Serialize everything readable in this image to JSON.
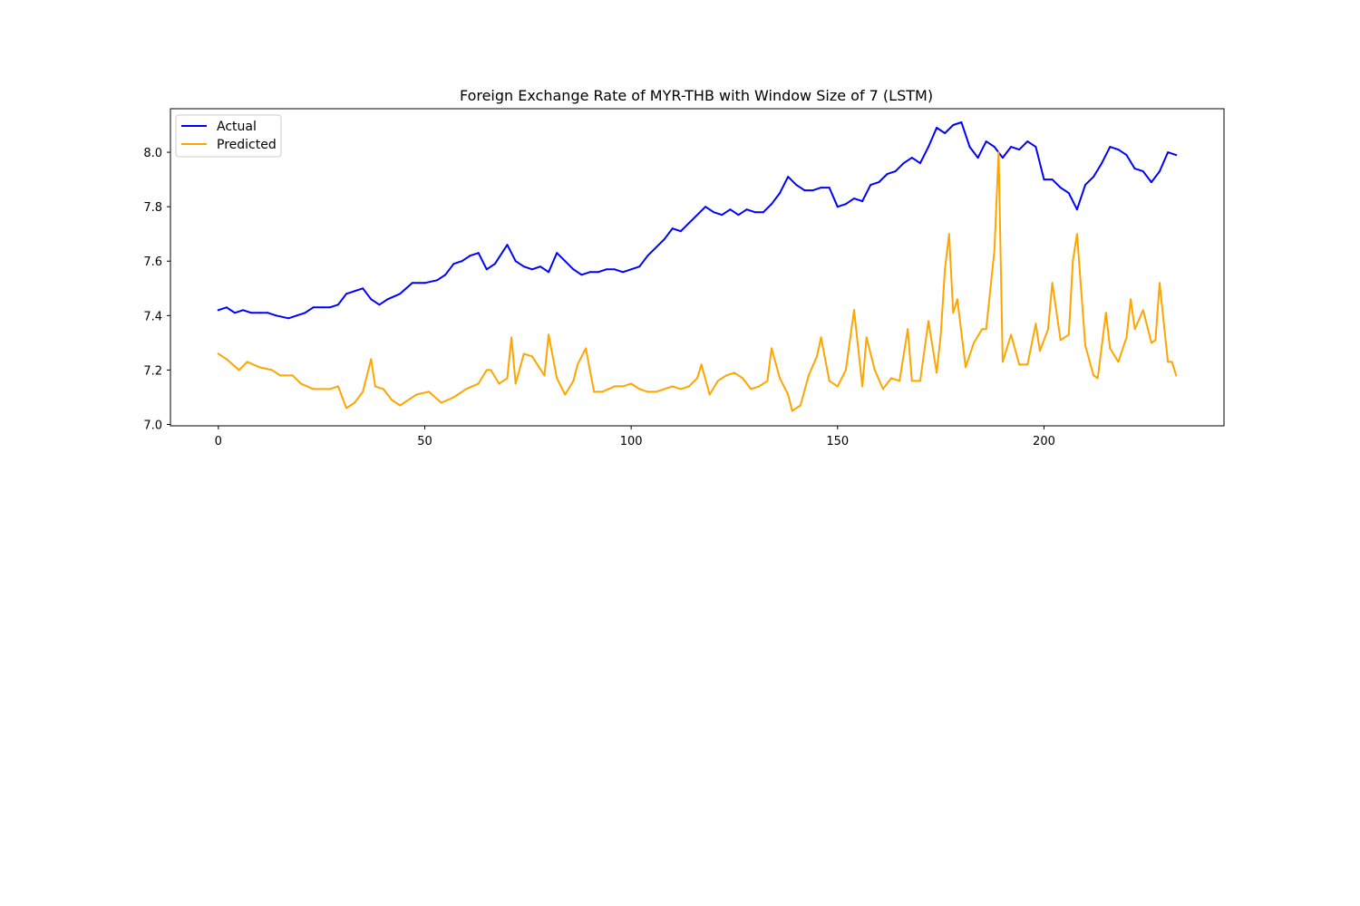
{
  "chart_data": {
    "type": "line",
    "title": "Foreign Exchange Rate of MYR-THB with Window Size of 7 (LSTM)",
    "xlabel": "",
    "ylabel": "",
    "xlim": [
      -11.6,
      243.6
    ],
    "ylim": [
      6.995,
      8.16
    ],
    "x_ticks": [
      0,
      50,
      100,
      150,
      200
    ],
    "y_ticks": [
      7.0,
      7.2,
      7.4,
      7.6,
      7.8,
      8.0
    ],
    "x_tick_labels": [
      "0",
      "50",
      "100",
      "150",
      "200"
    ],
    "y_tick_labels": [
      "7.0",
      "7.2",
      "7.4",
      "7.6",
      "7.8",
      "8.0"
    ],
    "grid": false,
    "legend_position": "upper-left",
    "series": [
      {
        "name": "Actual",
        "color": "#0000ff",
        "x": [
          0,
          2,
          4,
          6,
          8,
          10,
          12,
          14,
          17,
          19,
          21,
          23,
          25,
          27,
          29,
          31,
          33,
          35,
          37,
          39,
          41,
          44,
          47,
          50,
          53,
          55,
          57,
          59,
          61,
          63,
          65,
          67,
          70,
          72,
          74,
          76,
          78,
          80,
          82,
          84,
          86,
          88,
          90,
          92,
          94,
          96,
          98,
          100,
          102,
          104,
          106,
          108,
          110,
          112,
          114,
          116,
          118,
          120,
          122,
          124,
          126,
          128,
          130,
          132,
          134,
          136,
          138,
          140,
          142,
          144,
          146,
          148,
          150,
          152,
          154,
          156,
          158,
          160,
          162,
          164,
          166,
          168,
          170,
          172,
          174,
          176,
          178,
          180,
          182,
          184,
          186,
          188,
          190,
          192,
          194,
          196,
          198,
          200,
          202,
          204,
          206,
          208,
          210,
          212,
          214,
          216,
          218,
          220,
          222,
          224,
          226,
          228,
          230,
          232
        ],
        "values": [
          7.42,
          7.43,
          7.41,
          7.42,
          7.41,
          7.41,
          7.41,
          7.4,
          7.39,
          7.4,
          7.41,
          7.43,
          7.43,
          7.43,
          7.44,
          7.48,
          7.49,
          7.5,
          7.46,
          7.44,
          7.46,
          7.48,
          7.52,
          7.52,
          7.53,
          7.55,
          7.59,
          7.6,
          7.62,
          7.63,
          7.57,
          7.59,
          7.66,
          7.6,
          7.58,
          7.57,
          7.58,
          7.56,
          7.63,
          7.6,
          7.57,
          7.55,
          7.56,
          7.56,
          7.57,
          7.57,
          7.56,
          7.57,
          7.58,
          7.62,
          7.65,
          7.68,
          7.72,
          7.71,
          7.74,
          7.77,
          7.8,
          7.78,
          7.77,
          7.79,
          7.77,
          7.79,
          7.78,
          7.78,
          7.81,
          7.85,
          7.91,
          7.88,
          7.86,
          7.86,
          7.87,
          7.87,
          7.8,
          7.81,
          7.83,
          7.82,
          7.88,
          7.89,
          7.92,
          7.93,
          7.96,
          7.98,
          7.96,
          8.02,
          8.09,
          8.07,
          8.1,
          8.11,
          8.02,
          7.98,
          8.04,
          8.02,
          7.98,
          8.02,
          8.01,
          8.04,
          8.02,
          7.9,
          7.9,
          7.87,
          7.85,
          7.79,
          7.88,
          7.91,
          7.96,
          8.02,
          8.01,
          7.99,
          7.94,
          7.93,
          7.89,
          7.93,
          8.0,
          7.99
        ]
      },
      {
        "name": "Predicted",
        "color": "#ffa500",
        "x": [
          0,
          2,
          5,
          7,
          10,
          13,
          15,
          18,
          20,
          23,
          25,
          27,
          29,
          31,
          33,
          35,
          37,
          38,
          40,
          42,
          44,
          46,
          48,
          51,
          54,
          57,
          60,
          63,
          65,
          66,
          68,
          70,
          71,
          72,
          74,
          76,
          79,
          80,
          82,
          84,
          86,
          87,
          89,
          91,
          93,
          96,
          98,
          100,
          102,
          104,
          106,
          108,
          110,
          112,
          114,
          116,
          117,
          119,
          121,
          123,
          125,
          127,
          129,
          131,
          133,
          134,
          136,
          138,
          139,
          141,
          143,
          145,
          146,
          148,
          150,
          152,
          154,
          156,
          157,
          159,
          161,
          163,
          165,
          167,
          168,
          170,
          172,
          174,
          175,
          176,
          177,
          178,
          179,
          181,
          183,
          185,
          186,
          188,
          189,
          190,
          192,
          194,
          196,
          198,
          199,
          201,
          202,
          204,
          206,
          207,
          208,
          210,
          212,
          213,
          215,
          216,
          218,
          220,
          221,
          222,
          224,
          226,
          227,
          228,
          230,
          231,
          232
        ],
        "values": [
          7.26,
          7.24,
          7.2,
          7.23,
          7.21,
          7.2,
          7.18,
          7.18,
          7.15,
          7.13,
          7.13,
          7.13,
          7.14,
          7.06,
          7.08,
          7.12,
          7.24,
          7.14,
          7.13,
          7.09,
          7.07,
          7.09,
          7.11,
          7.12,
          7.08,
          7.1,
          7.13,
          7.15,
          7.2,
          7.2,
          7.15,
          7.17,
          7.32,
          7.15,
          7.26,
          7.25,
          7.18,
          7.33,
          7.17,
          7.11,
          7.16,
          7.22,
          7.28,
          7.12,
          7.12,
          7.14,
          7.14,
          7.15,
          7.13,
          7.12,
          7.12,
          7.13,
          7.14,
          7.13,
          7.14,
          7.17,
          7.22,
          7.11,
          7.16,
          7.18,
          7.19,
          7.17,
          7.13,
          7.14,
          7.16,
          7.28,
          7.17,
          7.11,
          7.05,
          7.07,
          7.18,
          7.25,
          7.32,
          7.16,
          7.14,
          7.2,
          7.42,
          7.14,
          7.32,
          7.2,
          7.13,
          7.17,
          7.16,
          7.35,
          7.16,
          7.16,
          7.38,
          7.19,
          7.33,
          7.57,
          7.7,
          7.41,
          7.46,
          7.21,
          7.3,
          7.35,
          7.35,
          7.64,
          8.0,
          7.23,
          7.33,
          7.22,
          7.22,
          7.37,
          7.27,
          7.35,
          7.52,
          7.31,
          7.33,
          7.6,
          7.7,
          7.29,
          7.18,
          7.17,
          7.41,
          7.28,
          7.23,
          7.32,
          7.46,
          7.35,
          7.42,
          7.3,
          7.31,
          7.52,
          7.23,
          7.23,
          7.18
        ]
      }
    ]
  }
}
